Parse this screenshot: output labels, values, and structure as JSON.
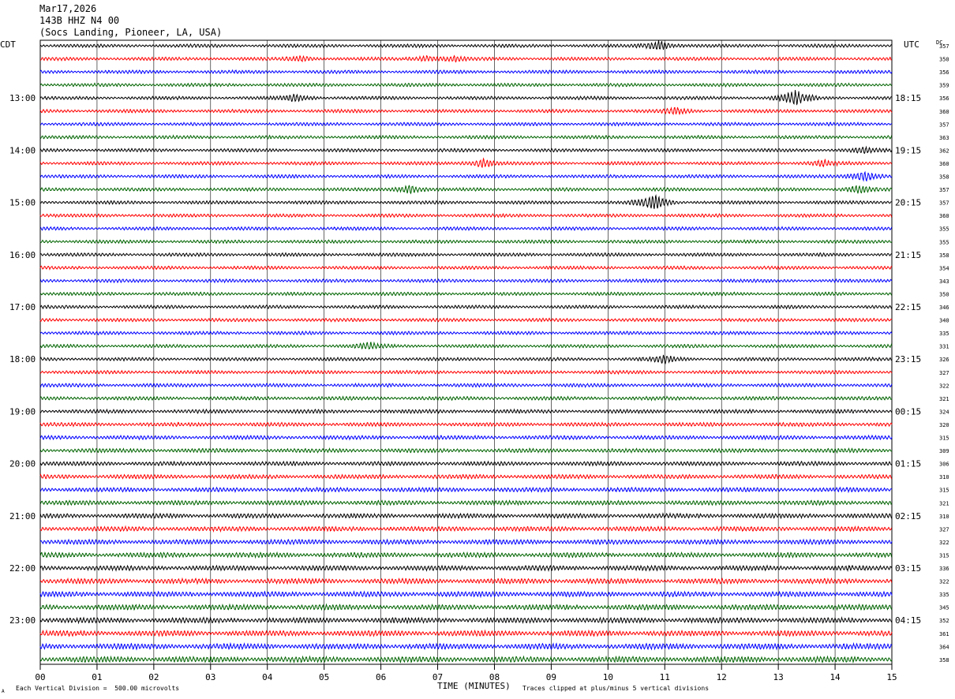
{
  "header": {
    "date": "Mar17,2026",
    "station": "143B HHZ N4 00",
    "location": "(Socs Landing, Pioneer, LA, USA)"
  },
  "labels": {
    "left_tz": "CDT",
    "right_tz": "UTC",
    "dc_header": "DC",
    "corner_mark": "A"
  },
  "footer": {
    "scale_note": "Each Vertical Division =  500.00 microvolts",
    "clip_note": "Traces clipped at plus/minus 5 vertical divisions"
  },
  "chart_data": {
    "type": "line",
    "title": "",
    "xlabel": "TIME (MINUTES)",
    "ylabel": "",
    "xlim": [
      0,
      15
    ],
    "x_ticks": [
      "00",
      "01",
      "02",
      "03",
      "04",
      "05",
      "06",
      "07",
      "08",
      "09",
      "10",
      "11",
      "12",
      "13",
      "14",
      "15"
    ],
    "trace_colors": [
      "#000000",
      "#ff0000",
      "#0000ff",
      "#006400"
    ],
    "grid": "vertical minute lines",
    "left_hour_labels": [
      "13:00",
      "14:00",
      "15:00",
      "16:00",
      "17:00",
      "18:00",
      "19:00",
      "20:00",
      "21:00",
      "22:00",
      "23:00"
    ],
    "right_hour_labels": [
      "18:15",
      "19:15",
      "20:15",
      "21:15",
      "22:15",
      "23:15",
      "00:15",
      "01:15",
      "02:15",
      "03:15",
      "04:15"
    ],
    "dc_offsets": [
      357,
      350,
      356,
      359,
      356,
      360,
      357,
      363,
      362,
      360,
      358,
      357,
      357,
      360,
      355,
      355,
      358,
      354,
      343,
      350,
      346,
      340,
      335,
      331,
      326,
      327,
      322,
      321,
      324,
      320,
      315,
      309,
      306,
      310,
      315,
      321,
      310,
      327,
      322,
      315,
      336,
      322,
      335,
      345,
      352,
      361,
      364,
      358
    ],
    "events": [
      {
        "trace": 0,
        "minute": 10.9,
        "strength": 3.0
      },
      {
        "trace": 1,
        "minute": 4.6,
        "strength": 1.5
      },
      {
        "trace": 1,
        "minute": 6.8,
        "strength": 1.5
      },
      {
        "trace": 1,
        "minute": 7.3,
        "strength": 1.3
      },
      {
        "trace": 4,
        "minute": 4.5,
        "strength": 1.8
      },
      {
        "trace": 4,
        "minute": 13.3,
        "strength": 5.0
      },
      {
        "trace": 5,
        "minute": 11.2,
        "strength": 1.6
      },
      {
        "trace": 8,
        "minute": 14.5,
        "strength": 1.5
      },
      {
        "trace": 9,
        "minute": 7.8,
        "strength": 2.5
      },
      {
        "trace": 9,
        "minute": 13.8,
        "strength": 1.6
      },
      {
        "trace": 10,
        "minute": 14.5,
        "strength": 3.0
      },
      {
        "trace": 11,
        "minute": 6.5,
        "strength": 2.5
      },
      {
        "trace": 11,
        "minute": 14.4,
        "strength": 2.0
      },
      {
        "trace": 12,
        "minute": 10.8,
        "strength": 4.5
      },
      {
        "trace": 23,
        "minute": 5.8,
        "strength": 1.8
      },
      {
        "trace": 24,
        "minute": 11.0,
        "strength": 2.0
      }
    ]
  }
}
